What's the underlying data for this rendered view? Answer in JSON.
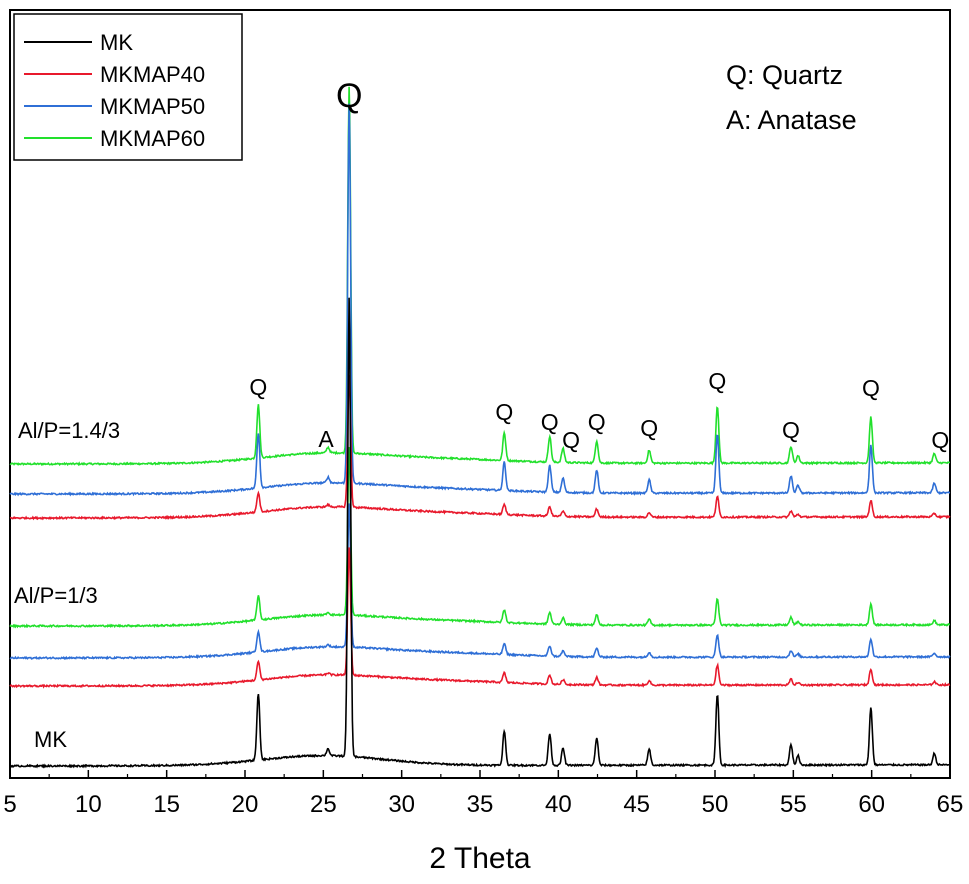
{
  "chart_data": {
    "type": "line",
    "xlabel": "2 Theta",
    "ylabel": "",
    "xlim": [
      5,
      65
    ],
    "x_ticks": [
      5,
      10,
      15,
      20,
      25,
      30,
      35,
      40,
      45,
      50,
      55,
      60,
      65
    ],
    "y_ticks_shown": false,
    "grid": false,
    "legend": {
      "position": "top-left",
      "entries": [
        {
          "name": "MK",
          "color": "#000000"
        },
        {
          "name": "MKMAP40",
          "color": "#e8192c"
        },
        {
          "name": "MKMAP50",
          "color": "#2f6fd6"
        },
        {
          "name": "MKMAP60",
          "color": "#22e02c"
        }
      ]
    },
    "phase_key": [
      "Q: Quartz",
      "A: Anatase"
    ],
    "groups": [
      {
        "label": "MK"
      },
      {
        "label": "Al/P=1/3"
      },
      {
        "label": "Al/P=1.4/3"
      }
    ],
    "series": [
      {
        "name": "MK",
        "color": "#000000",
        "group": 0,
        "offset": 0,
        "scale": 1.15,
        "noise": 1.0
      },
      {
        "name": "MKMAP40",
        "color": "#e8192c",
        "group": 1,
        "offset": 80,
        "scale": 0.32,
        "noise": 1.0
      },
      {
        "name": "MKMAP50",
        "color": "#2f6fd6",
        "group": 1,
        "offset": 108,
        "scale": 0.36,
        "noise": 1.0
      },
      {
        "name": "MKMAP60",
        "color": "#22e02c",
        "group": 1,
        "offset": 140,
        "scale": 0.42,
        "noise": 1.0
      },
      {
        "name": "MKMAP40",
        "color": "#e8192c",
        "group": 2,
        "offset": 248,
        "scale": 0.33,
        "noise": 1.0
      },
      {
        "name": "MKMAP50",
        "color": "#2f6fd6",
        "group": 2,
        "offset": 272,
        "scale": 0.95,
        "noise": 1.0
      },
      {
        "name": "MKMAP60",
        "color": "#22e02c",
        "group": 2,
        "offset": 302,
        "scale": 0.92,
        "noise": 1.0
      }
    ],
    "peaks": [
      {
        "x": 20.85,
        "h": 58,
        "label": "Q"
      },
      {
        "x": 25.3,
        "h": 6,
        "label": "A"
      },
      {
        "x": 26.65,
        "h": 400,
        "label": "Q"
      },
      {
        "x": 36.55,
        "h": 30,
        "label": "Q"
      },
      {
        "x": 39.45,
        "h": 28,
        "label": "Q"
      },
      {
        "x": 40.3,
        "h": 15,
        "label": "Q"
      },
      {
        "x": 42.45,
        "h": 24,
        "label": "Q"
      },
      {
        "x": 45.8,
        "h": 14,
        "label": "Q"
      },
      {
        "x": 50.15,
        "h": 62,
        "label": "Q"
      },
      {
        "x": 54.85,
        "h": 18,
        "label": "Q"
      },
      {
        "x": 55.3,
        "h": 8,
        "label": ""
      },
      {
        "x": 59.95,
        "h": 50,
        "label": "Q"
      },
      {
        "x": 64.0,
        "h": 10,
        "label": "Q"
      }
    ]
  }
}
